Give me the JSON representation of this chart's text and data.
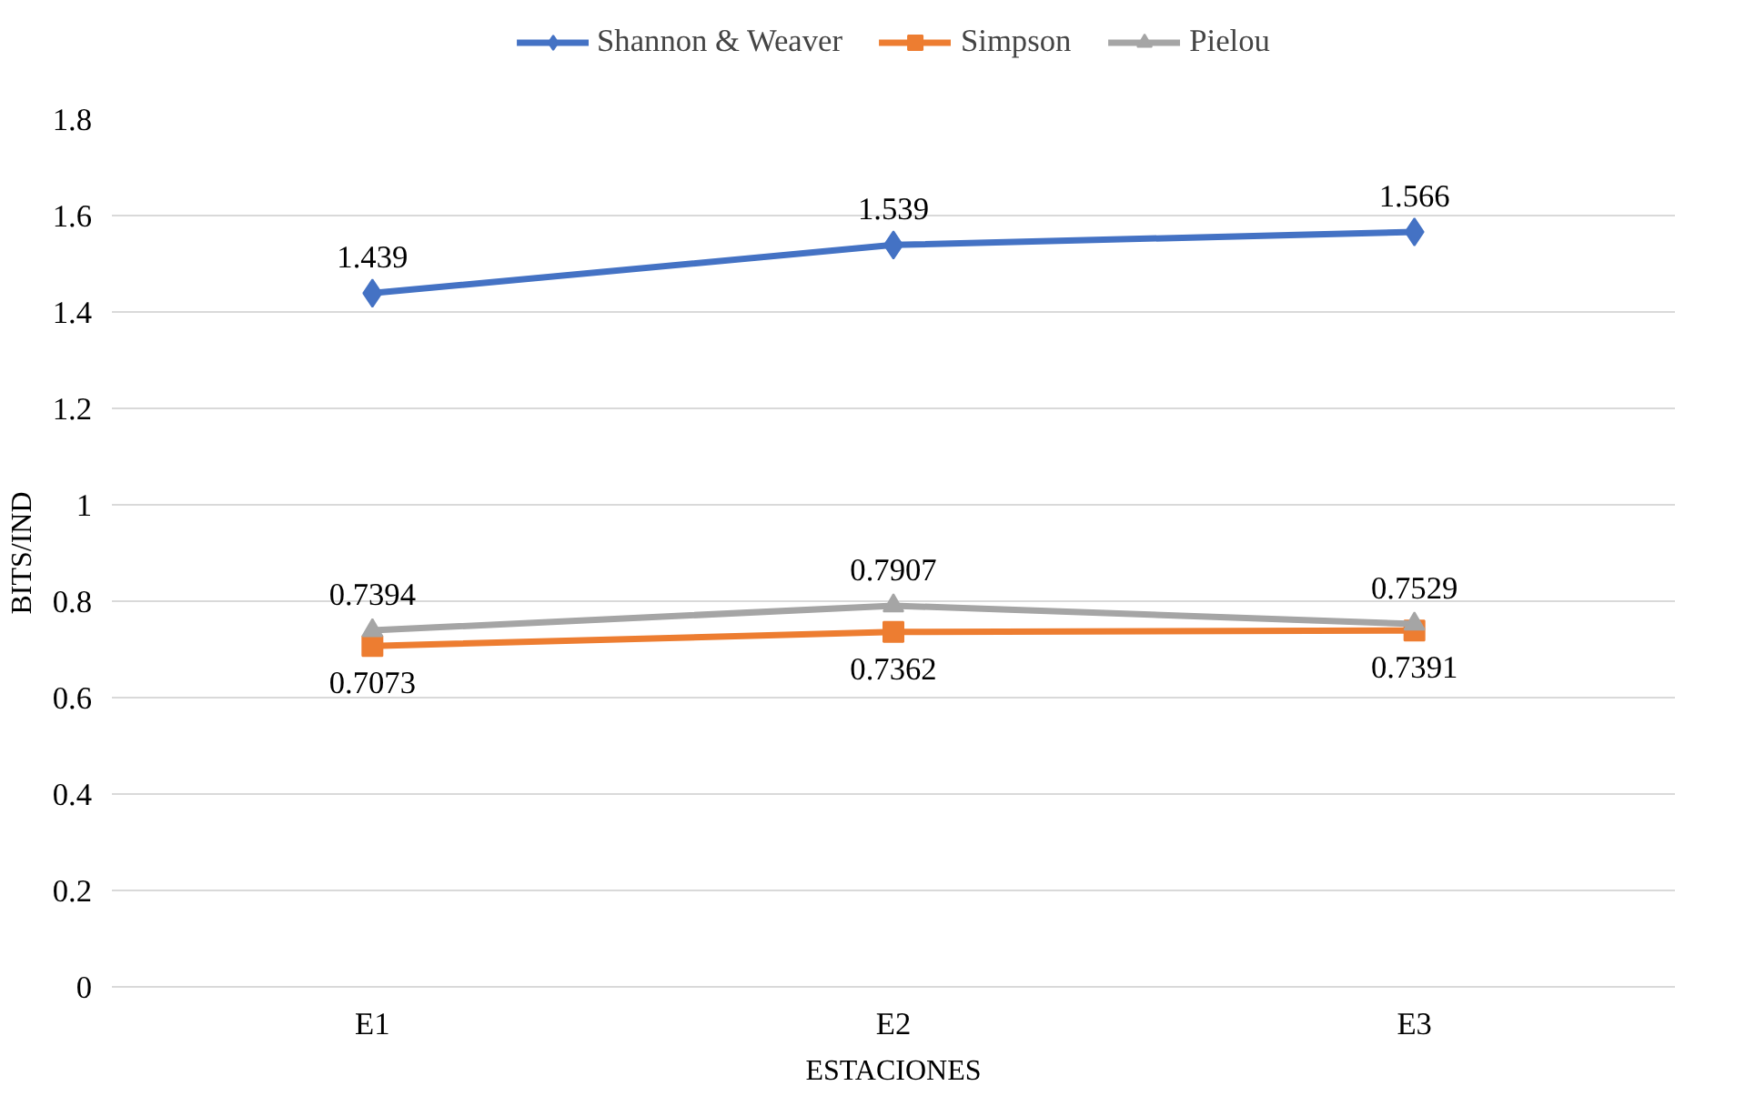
{
  "chart_data": {
    "type": "line",
    "xlabel": "ESTACIONES",
    "ylabel": "BITS/IND",
    "categories": [
      "E1",
      "E2",
      "E3"
    ],
    "series": [
      {
        "name": "Shannon & Weaver",
        "color": "#4472c4",
        "marker": "diamond",
        "values": [
          1.439,
          1.539,
          1.566
        ]
      },
      {
        "name": "Simpson",
        "color": "#ed7d31",
        "marker": "square",
        "values": [
          0.7073,
          0.7362,
          0.7391
        ]
      },
      {
        "name": "Pielou",
        "color": "#a5a5a5",
        "marker": "triangle",
        "values": [
          0.7394,
          0.7907,
          0.7529
        ]
      }
    ],
    "ylim": [
      0,
      1.8
    ],
    "yticks": [
      0,
      0.2,
      0.4,
      0.6,
      0.8,
      1,
      1.2,
      1.4,
      1.6,
      1.8
    ],
    "grid": "y",
    "legend": "top",
    "data_labels": true,
    "line_style": "solid"
  }
}
